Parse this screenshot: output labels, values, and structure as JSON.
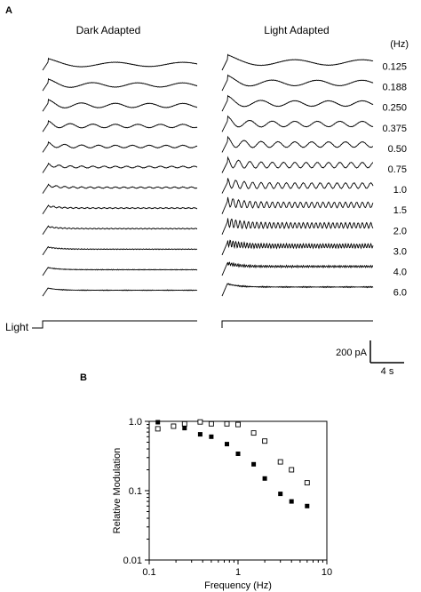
{
  "chart_data": [
    {
      "panel_label": "A",
      "type": "line",
      "column_headers": [
        "Dark Adapted",
        "Light Adapted"
      ],
      "unit_header": "(Hz)",
      "frequencies": [
        "0.125",
        "0.188",
        "0.250",
        "0.375",
        "0.50",
        "0.75",
        "1.0",
        "1.5",
        "2.0",
        "3.0",
        "4.0",
        "6.0"
      ],
      "stimulus_label": "Light",
      "scale_bar": {
        "current": "200 pA",
        "time": "4 s"
      }
    },
    {
      "panel_label": "B",
      "type": "scatter",
      "xlabel": "Frequency (Hz)",
      "ylabel": "Relative Modulation",
      "x_scale": "log",
      "y_scale": "log",
      "xlim": [
        0.1,
        10
      ],
      "ylim": [
        0.01,
        1.0
      ],
      "x_ticks": [
        "0.1",
        "1",
        "10"
      ],
      "y_ticks": [
        "1.0",
        "0.1",
        "0.01"
      ],
      "series": [
        {
          "marker": "filled-square",
          "x": [
            0.125,
            0.188,
            0.25,
            0.375,
            0.5,
            0.75,
            1.0,
            1.5,
            2.0,
            3.0,
            4.0,
            6.0
          ],
          "y": [
            0.97,
            0.86,
            0.8,
            0.65,
            0.6,
            0.47,
            0.34,
            0.24,
            0.15,
            0.09,
            0.07,
            0.06
          ]
        },
        {
          "marker": "open-square",
          "x": [
            0.125,
            0.188,
            0.25,
            0.375,
            0.5,
            0.75,
            1.0,
            1.5,
            2.0,
            3.0,
            4.0,
            6.0
          ],
          "y": [
            0.78,
            0.85,
            0.92,
            0.98,
            0.92,
            0.92,
            0.9,
            0.68,
            0.52,
            0.26,
            0.2,
            0.13
          ]
        }
      ]
    }
  ]
}
